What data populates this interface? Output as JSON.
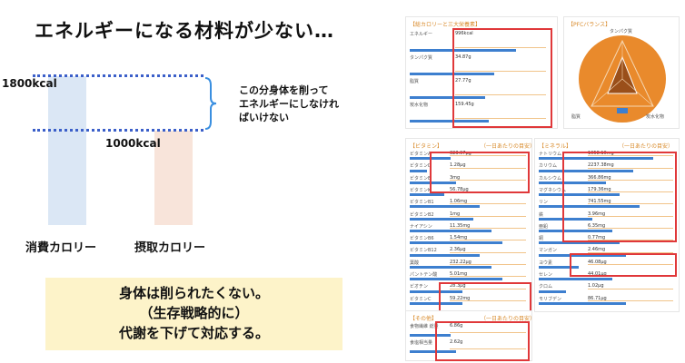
{
  "slide": {
    "title": "エネルギーになる材料が少ない…",
    "kcal_high": "1800kcal",
    "kcal_low": "1000kcal",
    "note": [
      "この分身体を削って",
      "エネルギーにしなけれ",
      "ばいけない"
    ],
    "category_consumed": "消費カロリー",
    "category_intake": "摂取カロリー",
    "conclusion": [
      "身体は削られたくない。",
      "（生存戦略的に）",
      "代謝を下げて対応する。"
    ]
  },
  "app": {
    "macro_panel": {
      "title": "【総カロリーと三大栄養素】",
      "rows": [
        {
          "name": "エネルギー",
          "value": "996kcal",
          "level": 0.78
        },
        {
          "name": "タンパク質",
          "value": "34.87g",
          "level": 0.62
        },
        {
          "name": "脂質",
          "value": "27.77g",
          "level": 0.55
        },
        {
          "name": "炭水化物",
          "value": "159.45g",
          "level": 0.58
        }
      ]
    },
    "pfc_panel": {
      "title": "【PFCバランス】",
      "labels": [
        "タンパク質",
        "脂質",
        "炭水化物"
      ],
      "color": "#e98a2c"
    },
    "vitamin_panel": {
      "title": "【ビタミン】",
      "subtitle": "（一日あたりの目安）",
      "rows": [
        {
          "name": "ビタミンA",
          "value": "323.97μg",
          "level": 0.35
        },
        {
          "name": "ビタミンD",
          "value": "1.28μg",
          "level": 0.15
        },
        {
          "name": "ビタミンE",
          "value": "3mg",
          "level": 0.4
        },
        {
          "name": "ビタミンK",
          "value": "56.78μg",
          "level": 0.3
        },
        {
          "name": "ビタミンB1",
          "value": "1.06mg",
          "level": 0.6
        },
        {
          "name": "ビタミンB2",
          "value": "1mg",
          "level": 0.55
        },
        {
          "name": "ナイアシン",
          "value": "11.35mg",
          "level": 0.7
        },
        {
          "name": "ビタミンB6",
          "value": "1.54mg",
          "level": 0.8
        },
        {
          "name": "ビタミンB12",
          "value": "2.36μg",
          "level": 0.6
        },
        {
          "name": "葉酸",
          "value": "232.22μg",
          "level": 0.7
        },
        {
          "name": "パントテン酸",
          "value": "5.01mg",
          "level": 0.8
        },
        {
          "name": "ビオチン",
          "value": "28.3μg",
          "level": 0.45
        },
        {
          "name": "ビタミンC",
          "value": "59.22mg",
          "level": 0.45
        }
      ]
    },
    "mineral_panel": {
      "title": "【ミネラル】",
      "subtitle": "（一日あたりの目安）",
      "rows": [
        {
          "name": "ナトリウム",
          "value": "1058.16mg",
          "level": 0.85
        },
        {
          "name": "カリウム",
          "value": "2237.38mg",
          "level": 0.7
        },
        {
          "name": "カルシウム",
          "value": "366.86mg",
          "level": 0.5
        },
        {
          "name": "マグネシウム",
          "value": "179.36mg",
          "level": 0.6
        },
        {
          "name": "リン",
          "value": "741.55mg",
          "level": 0.75
        },
        {
          "name": "鉄",
          "value": "3.96mg",
          "level": 0.4
        },
        {
          "name": "亜鉛",
          "value": "6.35mg",
          "level": 0.55
        },
        {
          "name": "銅",
          "value": "0.77mg",
          "level": 0.6
        },
        {
          "name": "マンガン",
          "value": "2.46mg",
          "level": 0.65
        },
        {
          "name": "ヨウ素",
          "value": "46.08μg",
          "level": 0.3
        },
        {
          "name": "セレン",
          "value": "44.01μg",
          "level": 0.55
        },
        {
          "name": "クロム",
          "value": "1.02μg",
          "level": 0.2
        },
        {
          "name": "モリブデン",
          "value": "86.71μg",
          "level": 0.65
        }
      ]
    },
    "other_panel": {
      "title": "【その他】",
      "subtitle": "（一日あたりの目安）",
      "rows": [
        {
          "name": "食物繊維 総量",
          "value": "6.86g",
          "level": 0.35
        },
        {
          "name": "食塩相当量",
          "value": "2.62g",
          "level": 0.4
        }
      ]
    }
  }
}
